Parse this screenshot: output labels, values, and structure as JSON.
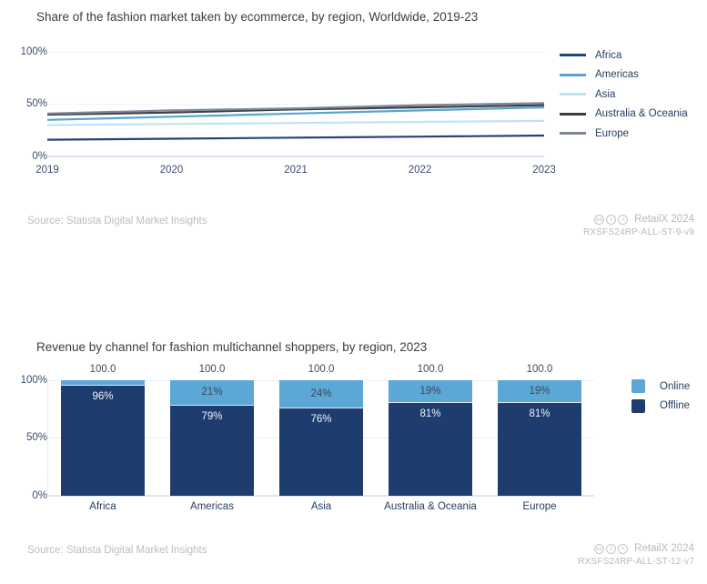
{
  "chart_data": [
    {
      "type": "line",
      "title": "Share of the fashion market taken by ecommerce, by region, Worldwide, 2019-23",
      "x_labels": [
        "2019",
        "2020",
        "2021",
        "2022",
        "2023"
      ],
      "y_tick_labels": [
        "100%",
        "50%",
        "0%"
      ],
      "ylim": [
        0,
        100
      ],
      "grid": true,
      "legend_position": "right",
      "series": [
        {
          "name": "Africa",
          "color": "#234478",
          "values": [
            16,
            17,
            18,
            19,
            20
          ]
        },
        {
          "name": "Americas",
          "color": "#58a5d1",
          "values": [
            35,
            38,
            41,
            44,
            47
          ]
        },
        {
          "name": "Asia",
          "color": "#bfe2f5",
          "values": [
            30,
            31,
            32,
            33,
            34
          ]
        },
        {
          "name": "Australia & Oceania",
          "color": "#3a4046",
          "values": [
            40,
            42,
            45,
            47,
            49
          ]
        },
        {
          "name": "Europe",
          "color": "#7e8896",
          "values": [
            41,
            44,
            46,
            49,
            51
          ]
        }
      ]
    },
    {
      "type": "stacked_bar",
      "title": "Revenue by channel for fashion multichannel shoppers, by region, 2023",
      "categories": [
        "Africa",
        "Americas",
        "Asia",
        "Australia & Oceania",
        "Europe"
      ],
      "y_tick_labels": [
        "100%",
        "50%",
        "0%"
      ],
      "ylim": [
        0,
        100
      ],
      "totals": [
        "100.0",
        "100.0",
        "100.0",
        "100.0",
        "100.0"
      ],
      "legend_position": "right",
      "series": [
        {
          "name": "Online",
          "color": "#5ba7d6",
          "values": [
            4,
            21,
            24,
            19,
            19
          ],
          "labels": [
            "",
            "21%",
            "24%",
            "19%",
            "19%"
          ]
        },
        {
          "name": "Offline",
          "color": "#1e3c6e",
          "values": [
            96,
            79,
            76,
            81,
            81
          ],
          "labels": [
            "96%",
            "79%",
            "76%",
            "81%",
            "81%"
          ]
        }
      ]
    }
  ],
  "footers": [
    {
      "source": "Source: Statista Digital Market Insights",
      "brand": "RetailX 2024",
      "code": "RXSFS24RP-ALL-ST-9-v9",
      "license_icons": [
        {
          "name": "cc-icon",
          "glyph": "cc"
        },
        {
          "name": "cc-by-icon",
          "glyph": "i"
        },
        {
          "name": "cc-nd-icon",
          "glyph": "="
        }
      ]
    },
    {
      "source": "Source: Statista Digital Market Insights",
      "brand": "RetailX 2024",
      "code": "RXSFS24RP-ALL-ST-12-v7",
      "license_icons": [
        {
          "name": "cc-icon",
          "glyph": "cc"
        },
        {
          "name": "cc-by-icon",
          "glyph": "i"
        },
        {
          "name": "cc-nd-icon",
          "glyph": "="
        }
      ]
    }
  ]
}
